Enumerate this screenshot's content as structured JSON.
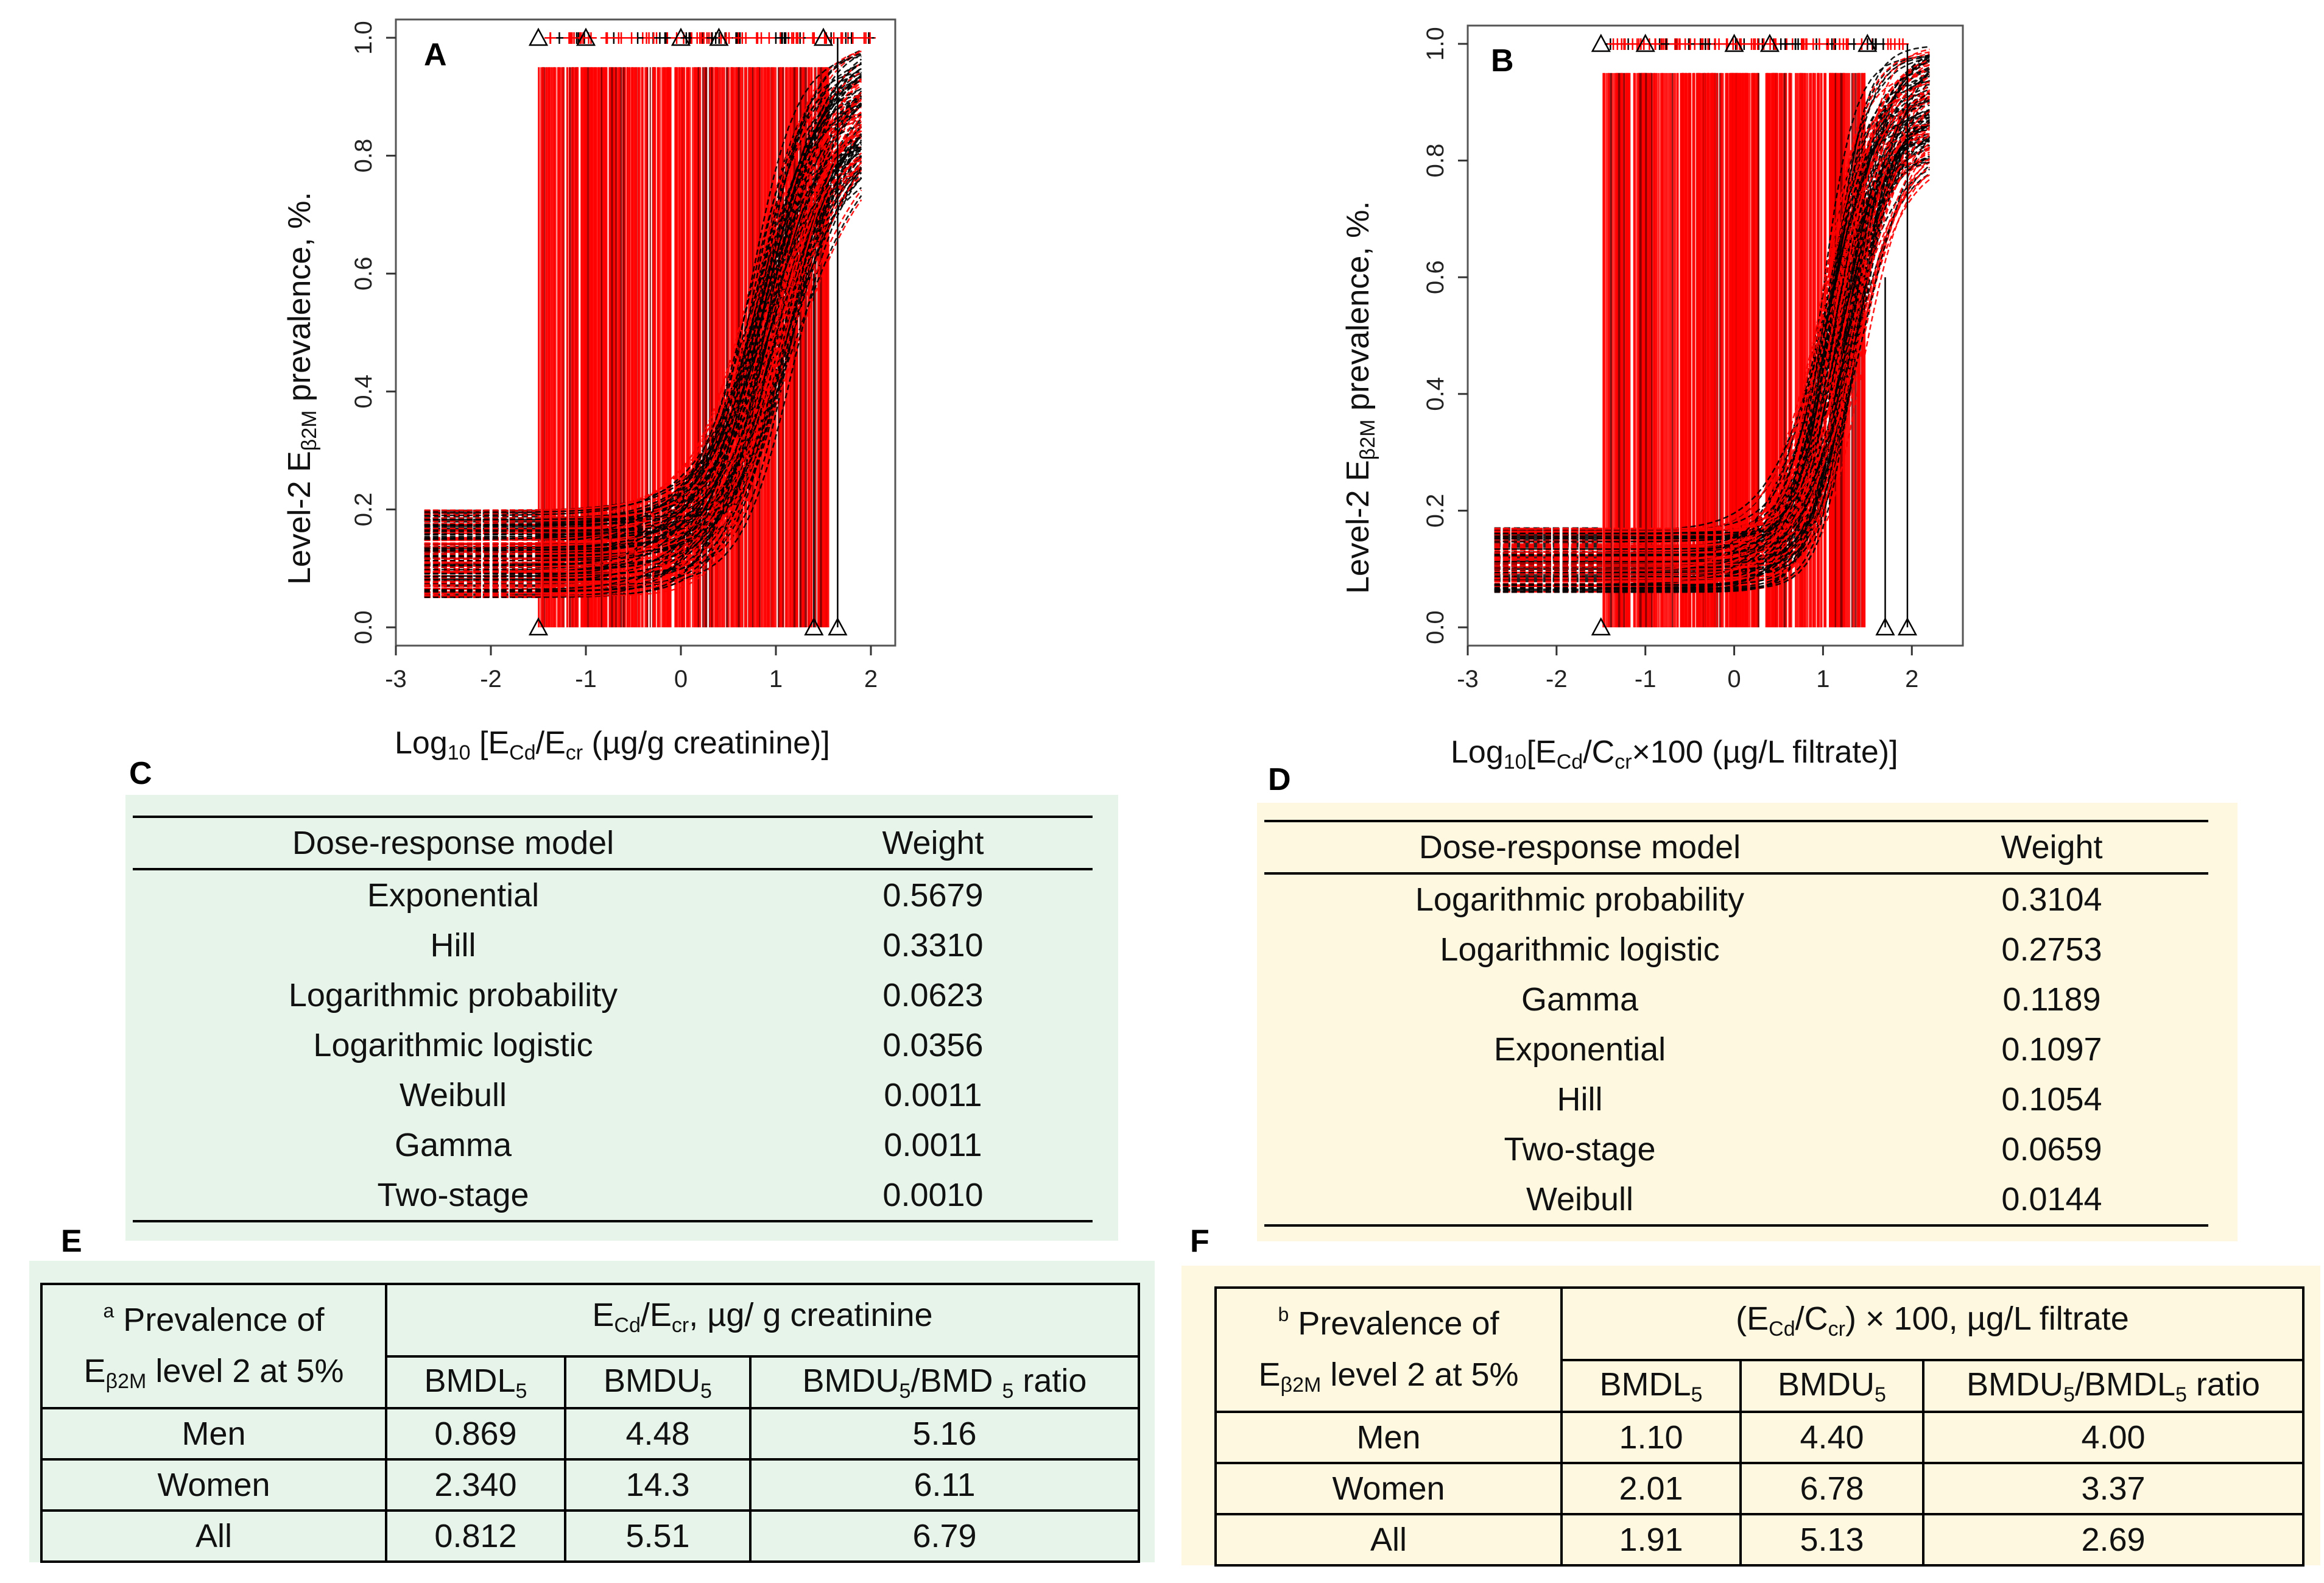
{
  "panels": {
    "A": {
      "letter": "A"
    },
    "B": {
      "letter": "B"
    },
    "C": {
      "letter": "C"
    },
    "D": {
      "letter": "D"
    },
    "E": {
      "letter": "E"
    },
    "F": {
      "letter": "F"
    }
  },
  "chart_data": [
    {
      "type": "line",
      "id": "A",
      "ylabel_main": "Level-2 E",
      "ylabel_sub": "β2M",
      "ylabel_tail": " prevalence, %.",
      "xlabel_pre": "Log",
      "xlabel_base": "10",
      "xlabel_mid1": " [E",
      "xlabel_cd": "Cd",
      "xlabel_mid2": "/E",
      "xlabel_cr": "cr",
      "xlabel_tail": " (µg/g creatinine)]",
      "xlim": [
        -3,
        2
      ],
      "ylim": [
        0,
        1
      ],
      "xticks": [
        "-3",
        "-2",
        "-1",
        "0",
        "1",
        "2"
      ],
      "xtick_values": [
        -3,
        -2,
        -1,
        0,
        1,
        2
      ],
      "yticks": [
        "0.0",
        "0.2",
        "0.4",
        "0.6",
        "0.8",
        "1.0"
      ],
      "ytick_values": [
        0,
        0.2,
        0.4,
        0.6,
        0.8,
        1.0
      ],
      "curve_fits": {
        "baseline_low": 0.05,
        "baseline_high": 0.2,
        "midpoint": 0.95,
        "slope": 3.2
      },
      "bounds_range": [
        -1.5,
        1.6
      ],
      "series": [
        {
          "name": "bootstrap bounds",
          "color": "#ff0000"
        },
        {
          "name": "model fits",
          "color": "#000000"
        }
      ]
    },
    {
      "type": "line",
      "id": "B",
      "ylabel_main": "Level-2 E",
      "ylabel_sub": "β2M",
      "ylabel_tail": " prevalence, %.",
      "xlabel_pre": "Log",
      "xlabel_base": "10",
      "xlabel_mid1": "[E",
      "xlabel_cd": "Cd",
      "xlabel_mid2": "/C",
      "xlabel_cr": "cr",
      "xlabel_tail": "×100 (µg/L filtrate)]",
      "xlim": [
        -3,
        2.3
      ],
      "ylim": [
        0,
        1
      ],
      "xticks": [
        "-3",
        "-2",
        "-1",
        "0",
        "1",
        "2"
      ],
      "xtick_values": [
        -3,
        -2,
        -1,
        0,
        1,
        2
      ],
      "yticks": [
        "0.0",
        "0.2",
        "0.4",
        "0.6",
        "0.8",
        "1.0"
      ],
      "ytick_values": [
        0,
        0.2,
        0.4,
        0.6,
        0.8,
        1.0
      ],
      "curve_fits": {
        "baseline_low": 0.06,
        "baseline_high": 0.17,
        "midpoint": 1.2,
        "slope": 4.2
      },
      "bounds_range": [
        -1.5,
        1.5
      ],
      "series": [
        {
          "name": "bootstrap bounds",
          "color": "#ff0000"
        },
        {
          "name": "model fits",
          "color": "#000000"
        }
      ]
    }
  ],
  "table_C": {
    "col_model": "Dose-response model",
    "col_weight": "Weight",
    "rows": [
      {
        "model": "Exponential",
        "weight": "0.5679"
      },
      {
        "model": "Hill",
        "weight": "0.3310"
      },
      {
        "model": "Logarithmic probability",
        "weight": "0.0623"
      },
      {
        "model": "Logarithmic logistic",
        "weight": "0.0356"
      },
      {
        "model": "Weibull",
        "weight": "0.0011"
      },
      {
        "model": "Gamma",
        "weight": "0.0011"
      },
      {
        "model": "Two-stage",
        "weight": "0.0010"
      }
    ],
    "bg": "#e6f4ea"
  },
  "table_D": {
    "col_model": "Dose-response model",
    "col_weight": "Weight",
    "rows": [
      {
        "model": "Logarithmic probability",
        "weight": "0.3104"
      },
      {
        "model": "Logarithmic logistic",
        "weight": "0.2753"
      },
      {
        "model": "Gamma",
        "weight": "0.1189"
      },
      {
        "model": "Exponential",
        "weight": "0.1097"
      },
      {
        "model": "Hill",
        "weight": "0.1054"
      },
      {
        "model": "Two-stage",
        "weight": "0.0659"
      },
      {
        "model": "Weibull",
        "weight": "0.0144"
      }
    ],
    "bg": "#fdf8df"
  },
  "table_E": {
    "corner_mark": "a",
    "corner_line1": " Prevalence of",
    "corner_line2a": "E",
    "corner_line2sub": "β2M",
    "corner_line2b": " level 2 at 5%",
    "group_a": "E",
    "group_sub1": "Cd",
    "group_b": "/E",
    "group_sub2": "cr",
    "group_c": ", µg/ g creatinine",
    "col1_a": "BMDL",
    "col1_sub": "5",
    "col2_a": "BMDU",
    "col2_sub": "5",
    "col3_a": "BMDU",
    "col3_sub": "5",
    "col3_b": "/BMD ",
    "col3_sub2": "5",
    "col3_c": " ratio",
    "rows": [
      {
        "group": "Men",
        "bmdl": "0.869",
        "bmdu": "4.48",
        "ratio": "5.16"
      },
      {
        "group": "Women",
        "bmdl": "2.340",
        "bmdu": "14.3",
        "ratio": "6.11"
      },
      {
        "group": "All",
        "bmdl": "0.812",
        "bmdu": "5.51",
        "ratio": "6.79"
      }
    ],
    "bg": "#e6f4ea"
  },
  "table_F": {
    "corner_mark": "b",
    "corner_line1": " Prevalence of",
    "corner_line2a": "E",
    "corner_line2sub": "β2M",
    "corner_line2b": " level 2 at 5%",
    "group_a": "(E",
    "group_sub1": "Cd",
    "group_b": "/C",
    "group_sub2": "cr",
    "group_c": ") × 100, µg/L filtrate",
    "col1_a": "BMDL",
    "col1_sub": "5",
    "col2_a": "BMDU",
    "col2_sub": "5",
    "col3_a": "BMDU",
    "col3_sub": "5",
    "col3_b": "/BMDL",
    "col3_sub2": "5",
    "col3_c": " ratio",
    "rows": [
      {
        "group": "Men",
        "bmdl": "1.10",
        "bmdu": "4.40",
        "ratio": "4.00"
      },
      {
        "group": "Women",
        "bmdl": "2.01",
        "bmdu": "6.78",
        "ratio": "3.37"
      },
      {
        "group": "All",
        "bmdl": "1.91",
        "bmdu": "5.13",
        "ratio": "2.69"
      }
    ],
    "bg": "#fdf8df"
  }
}
